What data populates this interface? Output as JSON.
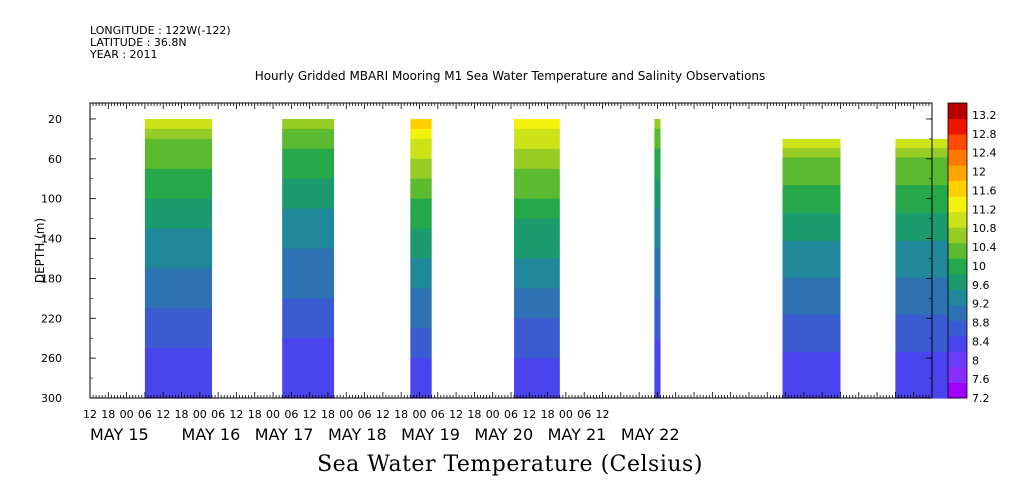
{
  "header": {
    "longitude": "LONGITUDE : 122W(-122)",
    "latitude": "LATITUDE : 36.8N",
    "year": "YEAR : 2011"
  },
  "chart_data": {
    "type": "heatmap",
    "title": "Hourly Gridded MBARI Mooring M1 Sea Water Temperature and Salinity Observations",
    "xlabel": "Sea Water Temperature (Celsius)",
    "ylabel": "DEPTH (m)",
    "xlim_hours": [
      -6,
      270
    ],
    "ylim": [
      300,
      4
    ],
    "x_hour_ticks": [
      "12",
      "18",
      "00",
      "06",
      "12",
      "18",
      "00",
      "06",
      "12",
      "18",
      "00",
      "06",
      "12",
      "18",
      "00",
      "06",
      "12",
      "18",
      "00",
      "06",
      "12",
      "18",
      "00",
      "06",
      "12",
      "18",
      "00",
      "06",
      "12"
    ],
    "x_date_labels": [
      {
        "label": "MAY 15",
        "hour": -6
      },
      {
        "label": "MAY 16",
        "hour": 24
      },
      {
        "label": "MAY 17",
        "hour": 48
      },
      {
        "label": "MAY 18",
        "hour": 72
      },
      {
        "label": "MAY 19",
        "hour": 96
      },
      {
        "label": "MAY 20",
        "hour": 120
      },
      {
        "label": "MAY 21",
        "hour": 144
      },
      {
        "label": "MAY 22",
        "hour": 168
      }
    ],
    "y_ticks": [
      20,
      60,
      100,
      140,
      180,
      220,
      260,
      300
    ],
    "colorbar": {
      "levels": [
        7.2,
        7.6,
        8,
        8.4,
        8.8,
        9.2,
        9.6,
        10,
        10.4,
        10.8,
        11.2,
        11.6,
        12,
        12.4,
        12.8,
        13.2
      ],
      "colors": [
        "#a000ff",
        "#8a2cff",
        "#6a3cff",
        "#4a44ee",
        "#3a5cd0",
        "#2f72b4",
        "#21879a",
        "#1b9a6e",
        "#26a84a",
        "#5cba30",
        "#96cc24",
        "#cce31a",
        "#f2f20a",
        "#ffd000",
        "#ffa500",
        "#ff7a00",
        "#ff4a00",
        "#ee1500",
        "#b80000"
      ],
      "labels": [
        "13.2",
        "12.8",
        "12.4",
        "12",
        "11.6",
        "11.2",
        "10.8",
        "10.4",
        "10",
        "9.6",
        "9.2",
        "8.8",
        "8.4",
        "8",
        "7.6",
        "7.2"
      ]
    },
    "data_blocks": [
      {
        "start_hour": 12,
        "end_hour": 34,
        "top_depth": 20,
        "surface_temp": 10.4
      },
      {
        "start_hour": 57,
        "end_hour": 74,
        "top_depth": 20,
        "surface_temp": 10.0
      },
      {
        "start_hour": 99,
        "end_hour": 106,
        "top_depth": 20,
        "surface_temp": 11.2
      },
      {
        "start_hour": 133,
        "end_hour": 148,
        "top_depth": 20,
        "surface_temp": 11.0
      },
      {
        "start_hour": 179,
        "end_hour": 181,
        "top_depth": 20,
        "surface_temp": 10.0
      },
      {
        "start_hour": 221,
        "end_hour": 240,
        "top_depth": 40,
        "surface_temp": 10.4
      },
      {
        "start_hour": 258,
        "end_hour": 278,
        "top_depth": 40,
        "surface_temp": 10.4
      }
    ]
  }
}
